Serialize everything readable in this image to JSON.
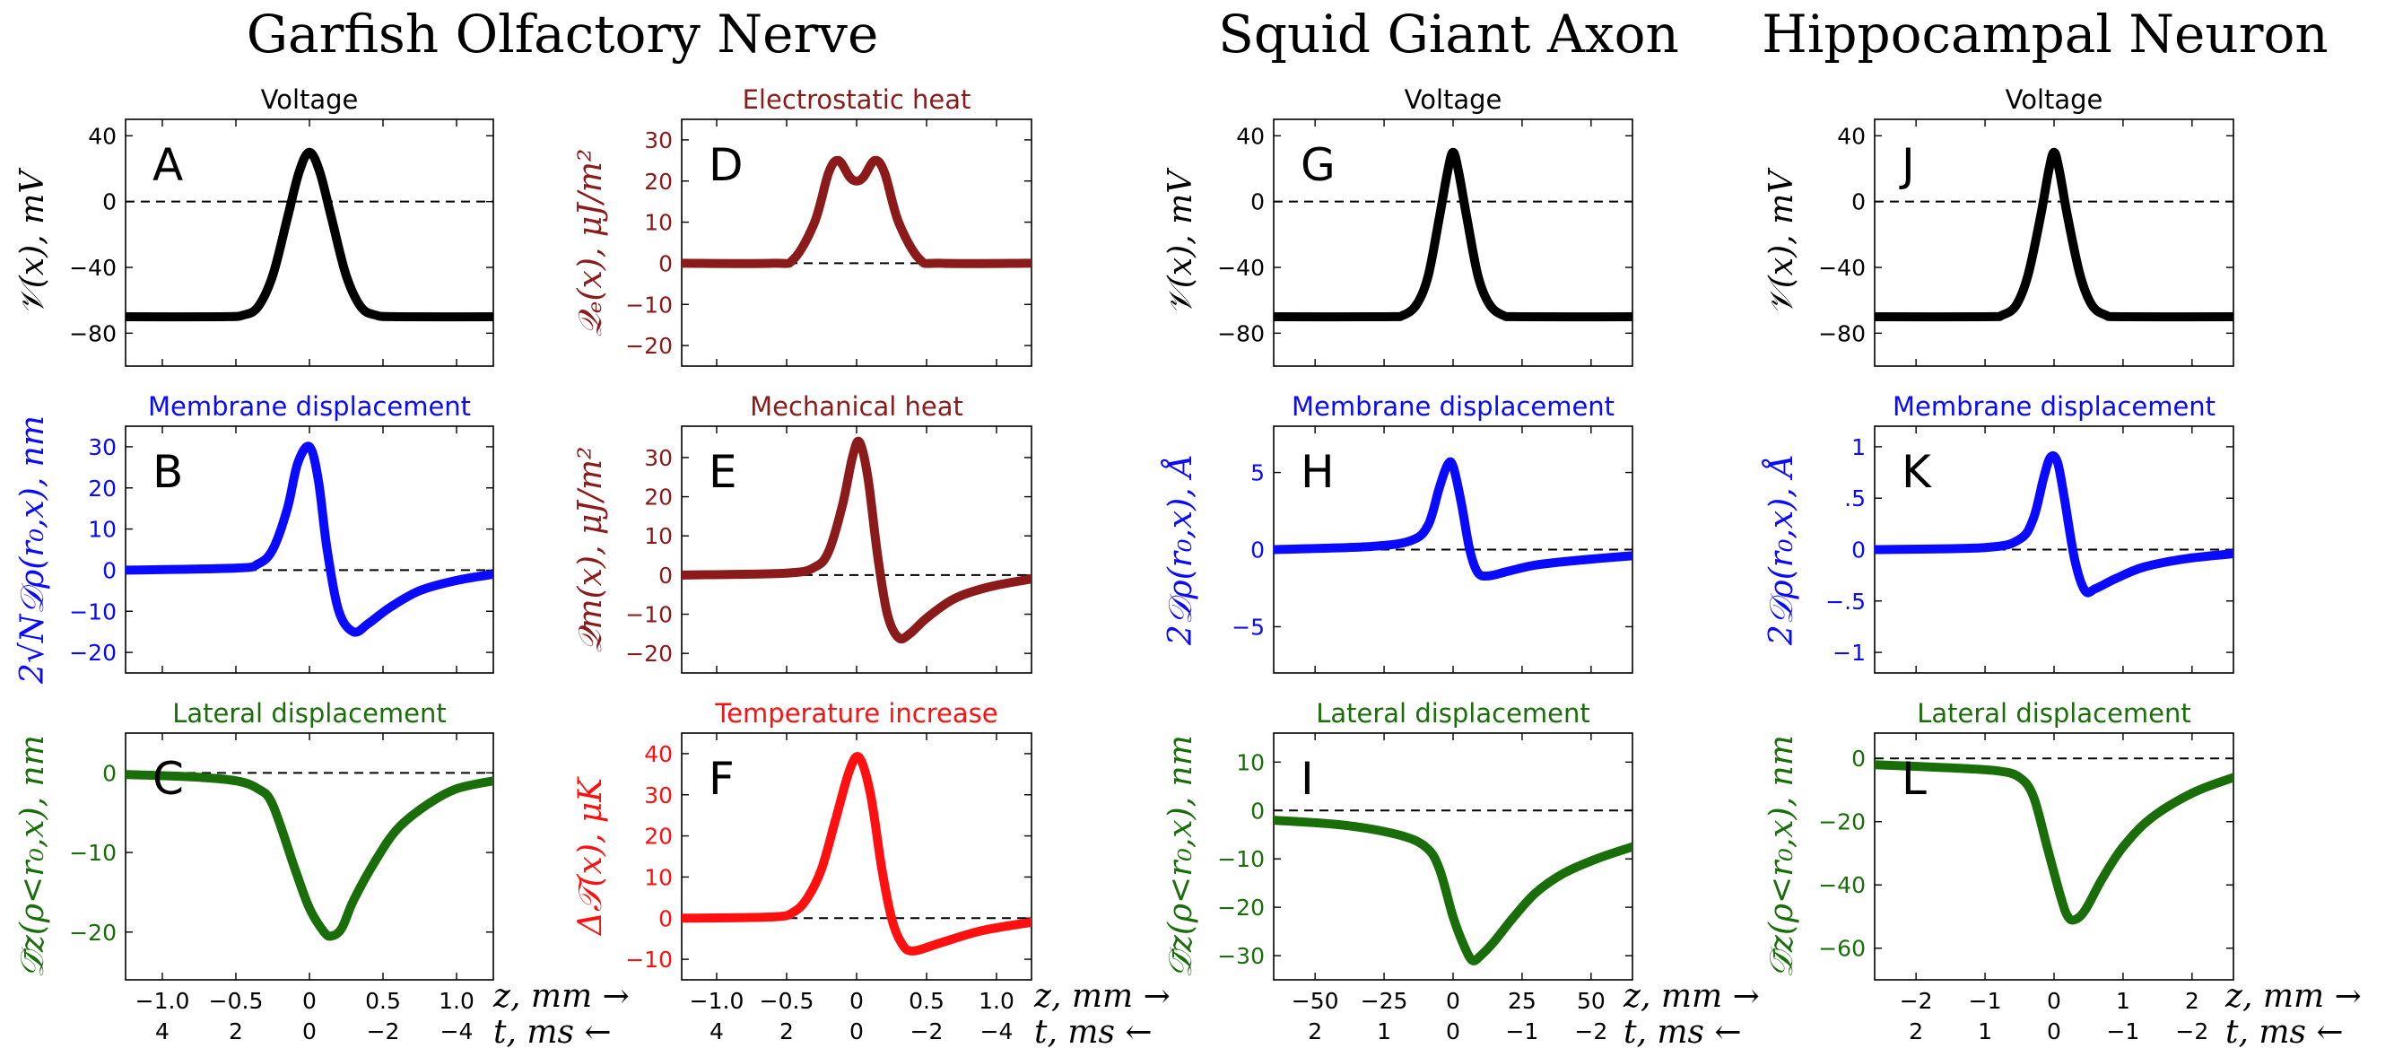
{
  "section_titles": [
    "Garfish Olfactory Nerve",
    "Squid Giant Axon",
    "Hippocampal Neuron"
  ],
  "axis_labels": {
    "z": "z, mm →",
    "t": "t, ms ←"
  },
  "colors": {
    "black": "#000000",
    "darkred": "#8b1a1a",
    "blue": "#0a0aff",
    "green": "#1a6e0a",
    "red": "#ff1010"
  },
  "chart_data": [
    {
      "id": "A",
      "type": "line",
      "title": "Voltage",
      "ylabel": "𝒱(x), mV",
      "color": "#000000",
      "title_color": "#000000",
      "ylim": [
        -100,
        50
      ],
      "yticks": [
        "40",
        "0",
        "−40",
        "−80"
      ],
      "ytick_vals": [
        40,
        0,
        -40,
        -80
      ],
      "xlim": [
        -1.25,
        1.25
      ],
      "xticks": [
        "−1.0",
        "−0.5",
        "0",
        "0.5",
        "1.0"
      ],
      "xtick_vals": [
        -1,
        -0.5,
        0,
        0.5,
        1
      ],
      "tticks": [
        "4",
        "2",
        "0",
        "−2",
        "−4"
      ],
      "baseline": 0,
      "x": [
        -1.25,
        -0.6,
        -0.45,
        -0.35,
        -0.25,
        -0.15,
        -0.07,
        0,
        0.07,
        0.15,
        0.25,
        0.35,
        0.45,
        0.6,
        1.25
      ],
      "y": [
        -70,
        -70,
        -69,
        -64,
        -45,
        -10,
        18,
        30,
        18,
        -10,
        -45,
        -64,
        -69,
        -70,
        -70
      ]
    },
    {
      "id": "B",
      "type": "line",
      "title": "Membrane displacement",
      "ylabel": "2√N𝒟ρ(r₀,x), nm",
      "color": "#0a0aff",
      "title_color": "#0a0aff",
      "ylim": [
        -25,
        35
      ],
      "yticks": [
        "30",
        "20",
        "10",
        "0",
        "−10",
        "−20"
      ],
      "ytick_vals": [
        30,
        20,
        10,
        0,
        -10,
        -20
      ],
      "xlim": [
        -1.25,
        1.25
      ],
      "xticks": [
        "−1.0",
        "−0.5",
        "0",
        "0.5",
        "1.0"
      ],
      "xtick_vals": [
        -1,
        -0.5,
        0,
        0.5,
        1
      ],
      "tticks": [
        "4",
        "2",
        "0",
        "−2",
        "−4"
      ],
      "baseline": 0,
      "x": [
        -1.25,
        -0.5,
        -0.35,
        -0.25,
        -0.15,
        -0.08,
        0,
        0.06,
        0.12,
        0.2,
        0.3,
        0.4,
        0.55,
        0.75,
        1.0,
        1.25
      ],
      "y": [
        0,
        0.5,
        1.5,
        5,
        15,
        26,
        30,
        22,
        5,
        -10,
        -15,
        -13,
        -9,
        -5,
        -2.5,
        -1
      ]
    },
    {
      "id": "C",
      "type": "line",
      "title": "Lateral displacement",
      "ylabel": "𝒟̄z(ρ<r₀,x), nm",
      "color": "#1a6e0a",
      "title_color": "#1a6e0a",
      "ylim": [
        -26,
        5
      ],
      "yticks": [
        "0",
        "−10",
        "−20"
      ],
      "ytick_vals": [
        0,
        -10,
        -20
      ],
      "xlim": [
        -1.25,
        1.25
      ],
      "xticks": [
        "−1.0",
        "−0.5",
        "0",
        "0.5",
        "1.0"
      ],
      "xtick_vals": [
        -1,
        -0.5,
        0,
        0.5,
        1
      ],
      "tticks": [
        "4",
        "2",
        "0",
        "−2",
        "−4"
      ],
      "baseline": 0,
      "x": [
        -1.25,
        -0.8,
        -0.5,
        -0.35,
        -0.25,
        -0.1,
        0,
        0.1,
        0.15,
        0.22,
        0.3,
        0.45,
        0.6,
        0.8,
        1.0,
        1.25
      ],
      "y": [
        -0.2,
        -0.5,
        -1,
        -2,
        -4,
        -12,
        -17,
        -20,
        -20.5,
        -19.5,
        -16,
        -11,
        -7,
        -4,
        -2,
        -1
      ]
    },
    {
      "id": "D",
      "type": "line",
      "title": "Electrostatic heat",
      "ylabel": "𝒬ₑ(x), μJ/m²",
      "color": "#8b1a1a",
      "title_color": "#8b1a1a",
      "ylim": [
        -25,
        35
      ],
      "yticks": [
        "30",
        "20",
        "10",
        "0",
        "−10",
        "−20"
      ],
      "ytick_vals": [
        30,
        20,
        10,
        0,
        -10,
        -20
      ],
      "xlim": [
        -1.25,
        1.25
      ],
      "xticks": [
        "−1.0",
        "−0.5",
        "0",
        "0.5",
        "1.0"
      ],
      "xtick_vals": [
        -1,
        -0.5,
        0,
        0.5,
        1
      ],
      "tticks": [
        "4",
        "2",
        "0",
        "−2",
        "−4"
      ],
      "baseline": 0,
      "x": [
        -1.25,
        -0.6,
        -0.45,
        -0.3,
        -0.2,
        -0.13,
        -0.05,
        0,
        0.05,
        0.13,
        0.2,
        0.3,
        0.45,
        0.6,
        1.25
      ],
      "y": [
        0,
        0,
        1,
        10,
        22,
        25,
        21,
        20,
        21,
        25,
        22,
        10,
        1,
        0,
        0
      ]
    },
    {
      "id": "E",
      "type": "line",
      "title": "Mechanical heat",
      "ylabel": "𝒬m(x), μJ/m²",
      "color": "#8b1a1a",
      "title_color": "#8b1a1a",
      "ylim": [
        -25,
        38
      ],
      "yticks": [
        "30",
        "20",
        "10",
        "0",
        "−10",
        "−20"
      ],
      "ytick_vals": [
        30,
        20,
        10,
        0,
        -10,
        -20
      ],
      "xlim": [
        -1.25,
        1.25
      ],
      "xticks": [
        "−1.0",
        "−0.5",
        "0",
        "0.5",
        "1.0"
      ],
      "xtick_vals": [
        -1,
        -0.5,
        0,
        0.5,
        1
      ],
      "tticks": [
        "4",
        "2",
        "0",
        "−2",
        "−4"
      ],
      "baseline": 0,
      "x": [
        -1.25,
        -0.5,
        -0.3,
        -0.2,
        -0.1,
        -0.03,
        0.02,
        0.08,
        0.15,
        0.22,
        0.3,
        0.38,
        0.5,
        0.7,
        0.95,
        1.25
      ],
      "y": [
        0,
        0.5,
        2,
        6,
        18,
        30,
        34,
        25,
        5,
        -10,
        -16,
        -15,
        -11,
        -6,
        -3,
        -1
      ]
    },
    {
      "id": "F",
      "type": "line",
      "title": "Temperature increase",
      "ylabel": "Δ𝒯(x), μK",
      "color": "#ff1010",
      "title_color": "#ff1010",
      "ylim": [
        -15,
        45
      ],
      "yticks": [
        "40",
        "30",
        "20",
        "10",
        "0",
        "−10"
      ],
      "ytick_vals": [
        40,
        30,
        20,
        10,
        0,
        -10
      ],
      "xlim": [
        -1.25,
        1.25
      ],
      "xticks": [
        "−1.0",
        "−0.5",
        "0",
        "0.5",
        "1.0"
      ],
      "xtick_vals": [
        -1,
        -0.5,
        0,
        0.5,
        1
      ],
      "tticks": [
        "4",
        "2",
        "0",
        "−2",
        "−4"
      ],
      "baseline": 0,
      "x": [
        -1.25,
        -0.6,
        -0.45,
        -0.35,
        -0.25,
        -0.15,
        -0.05,
        0.02,
        0.1,
        0.18,
        0.25,
        0.32,
        0.4,
        0.6,
        0.9,
        1.25
      ],
      "y": [
        0,
        0.3,
        1.5,
        5,
        12,
        24,
        36,
        39,
        30,
        12,
        0,
        -6,
        -8,
        -6,
        -3,
        -1
      ]
    },
    {
      "id": "G",
      "type": "line",
      "title": "Voltage",
      "ylabel": "𝒱(x), mV",
      "color": "#000000",
      "title_color": "#000000",
      "ylim": [
        -100,
        50
      ],
      "yticks": [
        "40",
        "0",
        "−40",
        "−80"
      ],
      "ytick_vals": [
        40,
        0,
        -40,
        -80
      ],
      "xlim": [
        -65,
        65
      ],
      "xticks": [
        "−50",
        "−25",
        "0",
        "25",
        "50"
      ],
      "xtick_vals": [
        -50,
        -25,
        0,
        25,
        50
      ],
      "tticks": [
        "2",
        "1",
        "0",
        "−1",
        "−2"
      ],
      "baseline": 0,
      "x": [
        -65,
        -25,
        -18,
        -13,
        -9,
        -5,
        -2,
        0,
        2,
        5,
        9,
        13,
        18,
        25,
        65
      ],
      "y": [
        -70,
        -70,
        -69,
        -62,
        -45,
        -10,
        18,
        30,
        18,
        -10,
        -45,
        -62,
        -69,
        -70,
        -70
      ]
    },
    {
      "id": "H",
      "type": "line",
      "title": "Membrane displacement",
      "ylabel": "2𝒟ρ(r₀,x), Å",
      "color": "#0a0aff",
      "title_color": "#0a0aff",
      "ylim": [
        -8,
        8
      ],
      "yticks": [
        "5",
        "0",
        "−5"
      ],
      "ytick_vals": [
        5,
        0,
        -5
      ],
      "xlim": [
        -65,
        65
      ],
      "xticks": [
        "−50",
        "−25",
        "0",
        "25",
        "50"
      ],
      "xtick_vals": [
        -50,
        -25,
        0,
        25,
        50
      ],
      "tticks": [
        "2",
        "1",
        "0",
        "−1",
        "−2"
      ],
      "baseline": 0,
      "x": [
        -65,
        -30,
        -15,
        -9,
        -5,
        -2,
        0,
        3,
        6,
        9,
        13,
        20,
        30,
        45,
        65
      ],
      "y": [
        0,
        0.2,
        0.6,
        1.6,
        4,
        5.5,
        5.4,
        3,
        0,
        -1.5,
        -1.7,
        -1.4,
        -1,
        -0.7,
        -0.4
      ]
    },
    {
      "id": "I",
      "type": "line",
      "title": "Lateral displacement",
      "ylabel": "𝒟̄z(ρ<r₀,x), nm",
      "color": "#1a6e0a",
      "title_color": "#1a6e0a",
      "ylim": [
        -35,
        16
      ],
      "yticks": [
        "10",
        "0",
        "−10",
        "−20",
        "−30"
      ],
      "ytick_vals": [
        10,
        0,
        -10,
        -20,
        -30
      ],
      "xlim": [
        -65,
        65
      ],
      "xticks": [
        "−50",
        "−25",
        "0",
        "25",
        "50"
      ],
      "xtick_vals": [
        -50,
        -25,
        0,
        25,
        50
      ],
      "tticks": [
        "2",
        "1",
        "0",
        "−1",
        "−2"
      ],
      "baseline": 0,
      "x": [
        -65,
        -40,
        -20,
        -10,
        -5,
        0,
        4,
        7,
        10,
        15,
        22,
        30,
        40,
        52,
        65
      ],
      "y": [
        -2,
        -3,
        -5,
        -7.5,
        -12,
        -22,
        -28,
        -31,
        -30,
        -27,
        -22,
        -17,
        -13,
        -10,
        -7.5
      ]
    },
    {
      "id": "J",
      "type": "line",
      "title": "Voltage",
      "ylabel": "𝒱(x), mV",
      "color": "#000000",
      "title_color": "#000000",
      "ylim": [
        -100,
        50
      ],
      "yticks": [
        "40",
        "0",
        "−40",
        "−80"
      ],
      "ytick_vals": [
        40,
        0,
        -40,
        -80
      ],
      "xlim": [
        -2.6,
        2.6
      ],
      "xticks": [
        "−2",
        "−1",
        "0",
        "1",
        "2"
      ],
      "xtick_vals": [
        -2,
        -1,
        0,
        1,
        2
      ],
      "tticks": [
        "2",
        "1",
        "0",
        "−1",
        "−2"
      ],
      "baseline": 0,
      "x": [
        -2.6,
        -1.0,
        -0.75,
        -0.55,
        -0.38,
        -0.2,
        -0.08,
        0,
        0.08,
        0.2,
        0.38,
        0.55,
        0.75,
        1.0,
        2.6
      ],
      "y": [
        -70,
        -70,
        -69,
        -63,
        -45,
        -10,
        18,
        30,
        18,
        -10,
        -45,
        -63,
        -69,
        -70,
        -70
      ]
    },
    {
      "id": "K",
      "type": "line",
      "title": "Membrane displacement",
      "ylabel": "2𝒟ρ(r₀,x), Å",
      "color": "#0a0aff",
      "title_color": "#0a0aff",
      "ylim": [
        -1.2,
        1.2
      ],
      "yticks": [
        "1",
        ".5",
        "0",
        "−.5",
        "−1"
      ],
      "ytick_vals": [
        1,
        0.5,
        0,
        -0.5,
        -1
      ],
      "xlim": [
        -2.6,
        2.6
      ],
      "xticks": [
        "−2",
        "−1",
        "0",
        "1",
        "2"
      ],
      "xtick_vals": [
        -2,
        -1,
        0,
        1,
        2
      ],
      "tticks": [
        "2",
        "1",
        "0",
        "−1",
        "−2"
      ],
      "baseline": 0,
      "x": [
        -2.6,
        -1.0,
        -0.5,
        -0.3,
        -0.15,
        -0.05,
        0.05,
        0.15,
        0.3,
        0.45,
        0.6,
        0.9,
        1.3,
        1.9,
        2.6
      ],
      "y": [
        0,
        0.02,
        0.1,
        0.3,
        0.7,
        0.9,
        0.85,
        0.5,
        -0.1,
        -0.4,
        -0.38,
        -0.28,
        -0.17,
        -0.09,
        -0.04
      ]
    },
    {
      "id": "L",
      "type": "line",
      "title": "Lateral displacement",
      "ylabel": "𝒟̄z(ρ<r₀,x), nm",
      "color": "#1a6e0a",
      "title_color": "#1a6e0a",
      "ylim": [
        -70,
        8
      ],
      "yticks": [
        "0",
        "−20",
        "−40",
        "−60"
      ],
      "ytick_vals": [
        0,
        -20,
        -40,
        -60
      ],
      "xlim": [
        -2.6,
        2.6
      ],
      "xticks": [
        "−2",
        "−1",
        "0",
        "1",
        "2"
      ],
      "xtick_vals": [
        -2,
        -1,
        0,
        1,
        2
      ],
      "tticks": [
        "2",
        "1",
        "0",
        "−1",
        "−2"
      ],
      "baseline": 0,
      "x": [
        -2.6,
        -1.5,
        -0.8,
        -0.5,
        -0.3,
        -0.1,
        0.1,
        0.2,
        0.3,
        0.45,
        0.7,
        1.0,
        1.4,
        2.0,
        2.6
      ],
      "y": [
        -2,
        -3,
        -4,
        -6,
        -12,
        -28,
        -44,
        -50,
        -51,
        -48,
        -38,
        -28,
        -19,
        -11,
        -6
      ]
    }
  ]
}
